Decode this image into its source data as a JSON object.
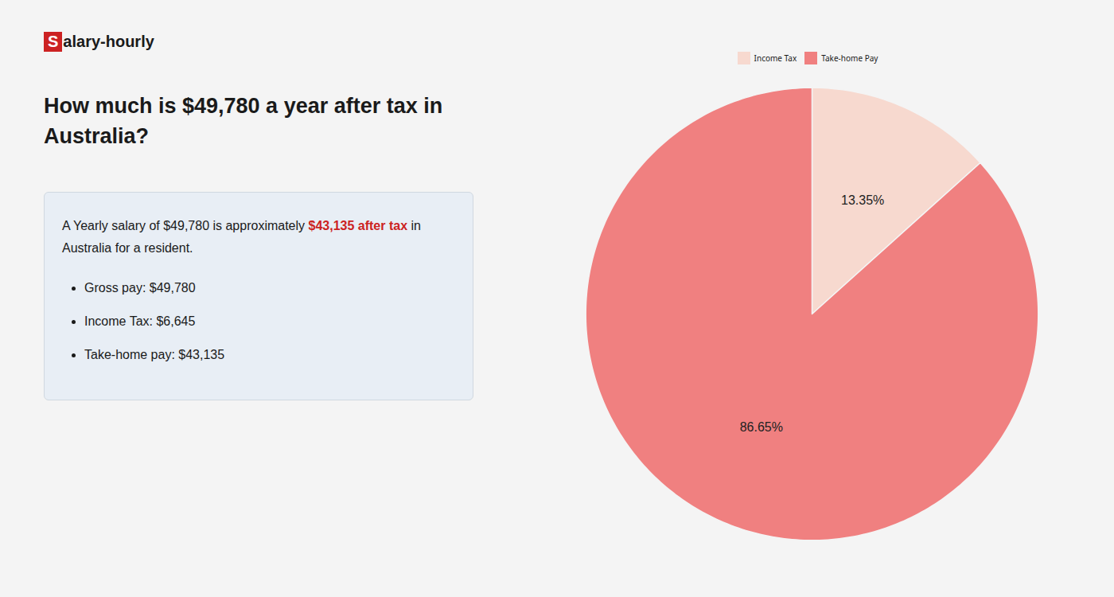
{
  "chart_data": {
    "type": "pie",
    "title": "How much is $49,780 a year after tax in Australia?",
    "annotations": [
      "S",
      "alary-hourly",
      "A Yearly salary of $49,780 is approximately ",
      "$43,135 after tax",
      " in",
      "Australia for a resident.",
      "Gross pay: $49,780",
      "Income Tax: $6,645",
      "Take-home pay: $43,135"
    ],
    "categories": [
      "Income Tax",
      "Take-home Pay"
    ],
    "values": [
      13.35,
      86.65
    ],
    "value_labels": [
      "13.35%",
      "86.65%"
    ],
    "colors": [
      "#f7d9cf",
      "#f08080"
    ],
    "data_labels": true,
    "legend": "top"
  }
}
